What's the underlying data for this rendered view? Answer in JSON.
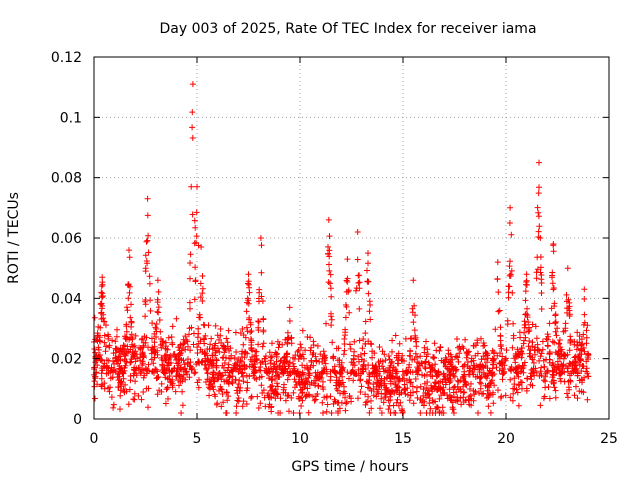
{
  "chart_data": {
    "type": "scatter",
    "title": "Day 003 of 2025, Rate Of TEC Index for receiver iama",
    "xlabel": "GPS time / hours",
    "ylabel": "ROTI / TECUs",
    "xlim": [
      0,
      25
    ],
    "ylim": [
      0,
      0.12
    ],
    "x_ticks": [
      0,
      5,
      10,
      15,
      20,
      25
    ],
    "x_tick_labels": [
      "0",
      "5",
      "10",
      "15",
      "20",
      "25"
    ],
    "y_ticks": [
      0,
      0.02,
      0.04,
      0.06,
      0.08,
      0.1,
      0.12
    ],
    "y_tick_labels": [
      "0",
      "0.02",
      "0.04",
      "0.06",
      "0.08",
      "0.1",
      "0.12"
    ],
    "grid": true,
    "marker": "+",
    "marker_color": "#ff0000",
    "point_count": 2400,
    "time_range_hours": [
      0,
      24
    ],
    "baseline_level": 0.015,
    "spikes": [
      {
        "x": 0.4,
        "y": 0.047
      },
      {
        "x": 1.7,
        "y": 0.056
      },
      {
        "x": 2.6,
        "y": 0.073
      },
      {
        "x": 3.1,
        "y": 0.046
      },
      {
        "x": 4.8,
        "y": 0.111
      },
      {
        "x": 5.0,
        "y": 0.077
      },
      {
        "x": 5.2,
        "y": 0.057
      },
      {
        "x": 7.5,
        "y": 0.048
      },
      {
        "x": 8.1,
        "y": 0.06
      },
      {
        "x": 9.5,
        "y": 0.037
      },
      {
        "x": 11.4,
        "y": 0.066
      },
      {
        "x": 12.3,
        "y": 0.053
      },
      {
        "x": 12.8,
        "y": 0.062
      },
      {
        "x": 13.3,
        "y": 0.055
      },
      {
        "x": 15.5,
        "y": 0.046
      },
      {
        "x": 19.6,
        "y": 0.052
      },
      {
        "x": 20.2,
        "y": 0.07
      },
      {
        "x": 21.0,
        "y": 0.048
      },
      {
        "x": 21.6,
        "y": 0.085
      },
      {
        "x": 22.3,
        "y": 0.058
      },
      {
        "x": 23.0,
        "y": 0.05
      },
      {
        "x": 23.8,
        "y": 0.043
      }
    ]
  }
}
